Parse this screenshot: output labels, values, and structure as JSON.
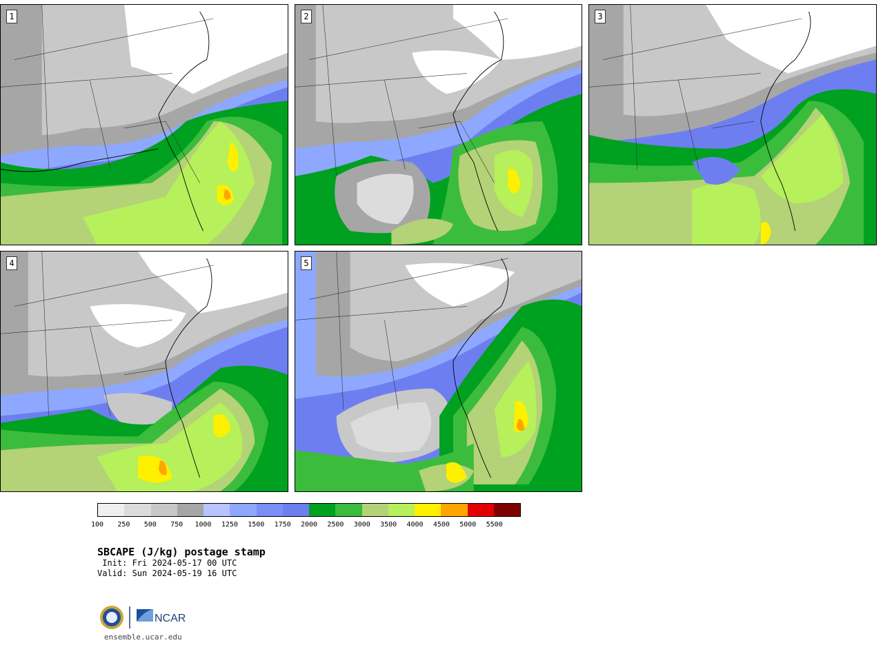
{
  "panels": [
    {
      "label": "1"
    },
    {
      "label": "2"
    },
    {
      "label": "3"
    },
    {
      "label": "4"
    },
    {
      "label": "5"
    }
  ],
  "colorbar": {
    "colors": [
      "#efefef",
      "#dcdcdc",
      "#c8c8c8",
      "#a6a6a6",
      "#b7c4ff",
      "#8ea8ff",
      "#7b8ef5",
      "#6d7ff0",
      "#00a020",
      "#3cbc3c",
      "#b4d278",
      "#b6f05a",
      "#fff000",
      "#ffa500",
      "#e00000",
      "#800000"
    ],
    "tick_labels": [
      "100",
      "250",
      "500",
      "750",
      "1000",
      "1250",
      "1500",
      "1750",
      "2000",
      "2500",
      "3000",
      "3500",
      "4000",
      "4500",
      "5000",
      "5500"
    ]
  },
  "caption": {
    "title": "SBCAPE (J/kg) postage stamp",
    "init": " Init: Fri 2024-05-17 00 UTC",
    "valid": "Valid: Sun 2024-05-19 16 UTC"
  },
  "logos": {
    "nsf_icon": "nsf-seal-icon",
    "ncar_text": "NCAR"
  },
  "website": "ensemble.ucar.edu"
}
